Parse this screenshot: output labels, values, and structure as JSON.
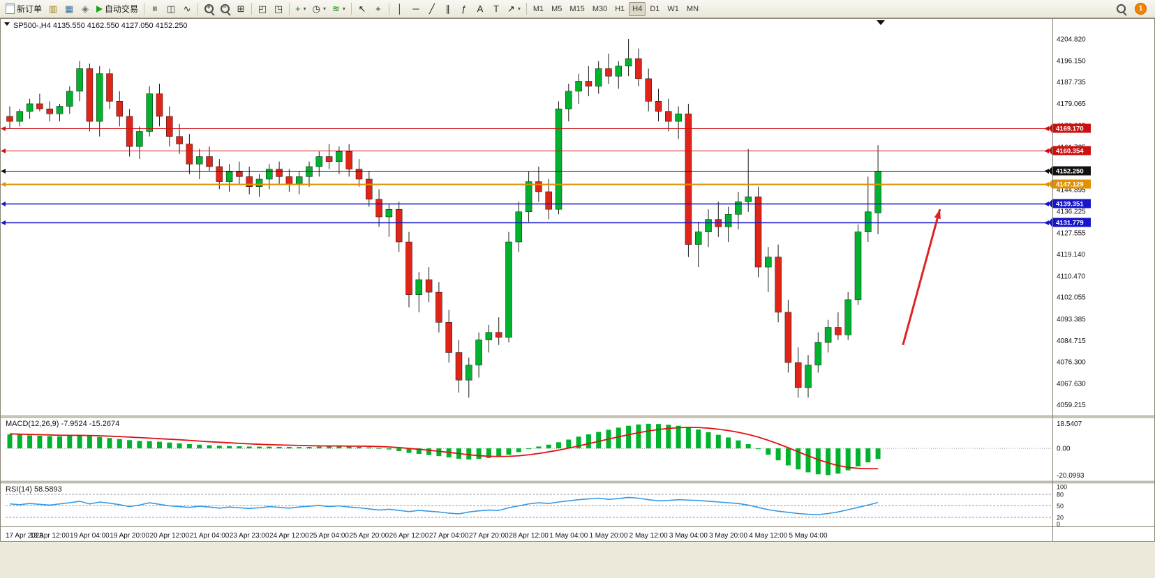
{
  "toolbar": {
    "new_order_label": "新订单",
    "auto_trading_label": "自动交易",
    "notification_count": "1",
    "timeframes": [
      "M1",
      "M5",
      "M15",
      "M30",
      "H1",
      "H4",
      "D1",
      "W1",
      "MN"
    ],
    "active_timeframe": "H4",
    "items": [
      {
        "name": "market-watch-button",
        "icon": "market-watch-icon"
      },
      {
        "name": "data-window-button",
        "icon": "data-window-icon"
      },
      {
        "name": "navigator-button",
        "icon": "navigator-icon"
      },
      {
        "name": "auto-trading-button",
        "icon": "auto-trading-icon",
        "label": "自动交易"
      },
      {
        "sep": true
      },
      {
        "name": "bars-chart-button",
        "icon": "bars-icon"
      },
      {
        "name": "candles-chart-button",
        "icon": "candles-icon"
      },
      {
        "name": "line-chart-button",
        "icon": "line-chart-icon"
      },
      {
        "sep": true
      },
      {
        "name": "zoom-in-button",
        "icon": "zoom-in-icon"
      },
      {
        "name": "zoom-out-button",
        "icon": "zoom-out-icon"
      },
      {
        "name": "grid-button",
        "icon": "grid-icon"
      },
      {
        "sep": true
      },
      {
        "name": "tile-windows-button",
        "icon": "tile-h-icon"
      },
      {
        "name": "cascade-windows-button",
        "icon": "tile-v-icon"
      },
      {
        "sep": true
      },
      {
        "name": "new-chart-button",
        "icon": "new-chart-icon",
        "caret": true
      },
      {
        "name": "refresh-button",
        "icon": "clock-icon",
        "caret": true
      },
      {
        "name": "indicators-button",
        "icon": "indicators-icon",
        "caret": true
      },
      {
        "sep": true
      },
      {
        "name": "cursor-button",
        "icon": "cursor-icon"
      },
      {
        "name": "crosshair-button",
        "icon": "crosshair-icon"
      },
      {
        "sep": true
      },
      {
        "name": "vertical-line-button",
        "icon": "vline-icon"
      },
      {
        "name": "horizontal-line-button",
        "icon": "hline-icon"
      },
      {
        "name": "trendline-button",
        "icon": "trendline-icon"
      },
      {
        "name": "channel-button",
        "icon": "channel-icon"
      },
      {
        "name": "fibonacci-button",
        "icon": "fibonacci-icon"
      },
      {
        "name": "text-button",
        "icon": "text-icon"
      },
      {
        "name": "label-button",
        "icon": "label-icon"
      },
      {
        "name": "shapes-button",
        "icon": "shapes-icon",
        "caret": true
      }
    ]
  },
  "chart_data": [
    {
      "type": "candlestick",
      "symbol": "SP500-",
      "timeframe": "H4",
      "title_text": "SP500-,H4 4135.550 4162.550 4127.050 4152.250",
      "last_ohlc": {
        "open": 4135.55,
        "high": 4162.55,
        "low": 4127.05,
        "close": 4152.25
      },
      "ylim": [
        4056,
        4212
      ],
      "colors": {
        "up": "#00b22d",
        "down": "#e02518",
        "wick": "#1a1a1a"
      },
      "y_axis_labels": [
        "4204.820",
        "4196.150",
        "4187.735",
        "4179.065",
        "4170.395",
        "4161.725",
        "4153.055",
        "4144.895",
        "4136.225",
        "4127.555",
        "4119.140",
        "4110.470",
        "4102.055",
        "4093.385",
        "4084.715",
        "4076.300",
        "4067.630",
        "4059.215"
      ],
      "x_axis_labels": [
        "17 Apr 2023",
        "18 Apr 12:00",
        "19 Apr 04:00",
        "19 Apr 20:00",
        "20 Apr 12:00",
        "21 Apr 04:00",
        "23 Apr 23:00",
        "24 Apr 12:00",
        "25 Apr 04:00",
        "25 Apr 20:00",
        "26 Apr 12:00",
        "27 Apr 04:00",
        "27 Apr 20:00",
        "28 Apr 12:00",
        "1 May 04:00",
        "1 May 20:00",
        "2 May 12:00",
        "3 May 04:00",
        "3 May 20:00",
        "4 May 12:00",
        "5 May 04:00"
      ],
      "hlines": [
        {
          "price": 4169.17,
          "label": "4169.170",
          "color": "#cc1111",
          "width": 1
        },
        {
          "price": 4160.354,
          "label": "4160.354",
          "color": "#cc1111",
          "width": 1
        },
        {
          "price": 4152.25,
          "label": "4152.250",
          "color": "#111111",
          "width": 1
        },
        {
          "price": 4147.129,
          "label": "4147.129",
          "color": "#e09000",
          "width": 2
        },
        {
          "price": 4139.351,
          "label": "4139.351",
          "color": "#1515cc",
          "width": 1.5
        },
        {
          "price": 4131.779,
          "label": "4131.779",
          "color": "#1515cc",
          "width": 1.5
        }
      ],
      "arrow": {
        "x1_index": 89.5,
        "price1": 4083,
        "x2_index": 93.2,
        "price2": 4137,
        "color": "#dd2222"
      },
      "candles": [
        [
          4174,
          4178,
          4169,
          4172
        ],
        [
          4172,
          4177,
          4170,
          4176
        ],
        [
          4176,
          4181,
          4173,
          4179
        ],
        [
          4179,
          4183,
          4176,
          4177
        ],
        [
          4177,
          4180,
          4172,
          4175
        ],
        [
          4175,
          4179,
          4172,
          4178
        ],
        [
          4178,
          4186,
          4175,
          4184
        ],
        [
          4184,
          4196,
          4180,
          4193
        ],
        [
          4193,
          4195,
          4168,
          4172
        ],
        [
          4172,
          4194,
          4166,
          4191
        ],
        [
          4191,
          4193,
          4177,
          4180
        ],
        [
          4180,
          4184,
          4170,
          4174
        ],
        [
          4174,
          4177,
          4158,
          4162
        ],
        [
          4162,
          4170,
          4157,
          4168
        ],
        [
          4168,
          4186,
          4166,
          4183
        ],
        [
          4183,
          4187,
          4170,
          4174
        ],
        [
          4174,
          4178,
          4162,
          4166
        ],
        [
          4166,
          4171,
          4159,
          4163
        ],
        [
          4163,
          4167,
          4151,
          4155
        ],
        [
          4155,
          4161,
          4149,
          4158
        ],
        [
          4158,
          4162,
          4152,
          4154
        ],
        [
          4154,
          4157,
          4145,
          4148
        ],
        [
          4148,
          4155,
          4144,
          4152
        ],
        [
          4152,
          4156,
          4147,
          4150
        ],
        [
          4150,
          4154,
          4143,
          4146
        ],
        [
          4146,
          4151,
          4142,
          4149
        ],
        [
          4149,
          4155,
          4145,
          4153
        ],
        [
          4153,
          4156,
          4147,
          4150
        ],
        [
          4150,
          4153,
          4144,
          4147
        ],
        [
          4147,
          4152,
          4143,
          4150
        ],
        [
          4150,
          4156,
          4146,
          4154
        ],
        [
          4154,
          4160,
          4150,
          4158
        ],
        [
          4158,
          4163,
          4153,
          4156
        ],
        [
          4156,
          4162,
          4151,
          4160
        ],
        [
          4160,
          4163,
          4150,
          4153
        ],
        [
          4153,
          4157,
          4146,
          4149
        ],
        [
          4149,
          4152,
          4138,
          4141
        ],
        [
          4141,
          4145,
          4130,
          4134
        ],
        [
          4134,
          4139,
          4126,
          4137
        ],
        [
          4137,
          4140,
          4120,
          4124
        ],
        [
          4124,
          4128,
          4098,
          4103
        ],
        [
          4103,
          4112,
          4096,
          4109
        ],
        [
          4109,
          4114,
          4100,
          4104
        ],
        [
          4104,
          4108,
          4088,
          4092
        ],
        [
          4092,
          4097,
          4076,
          4080
        ],
        [
          4080,
          4085,
          4064,
          4069
        ],
        [
          4069,
          4078,
          4062,
          4075
        ],
        [
          4075,
          4088,
          4070,
          4085
        ],
        [
          4085,
          4091,
          4080,
          4088
        ],
        [
          4088,
          4094,
          4083,
          4086
        ],
        [
          4086,
          4128,
          4084,
          4124
        ],
        [
          4124,
          4140,
          4120,
          4136
        ],
        [
          4136,
          4152,
          4132,
          4148
        ],
        [
          4148,
          4154,
          4140,
          4144
        ],
        [
          4144,
          4149,
          4133,
          4137
        ],
        [
          4137,
          4180,
          4135,
          4177
        ],
        [
          4177,
          4187,
          4172,
          4184
        ],
        [
          4184,
          4191,
          4179,
          4188
        ],
        [
          4188,
          4194,
          4182,
          4186
        ],
        [
          4186,
          4196,
          4183,
          4193
        ],
        [
          4193,
          4199,
          4187,
          4190
        ],
        [
          4190,
          4196,
          4185,
          4194
        ],
        [
          4194,
          4204.8,
          4190,
          4197
        ],
        [
          4197,
          4201,
          4186,
          4189
        ],
        [
          4189,
          4193,
          4176,
          4180
        ],
        [
          4180,
          4185,
          4172,
          4176
        ],
        [
          4176,
          4181,
          4168,
          4172
        ],
        [
          4172,
          4178,
          4165,
          4175
        ],
        [
          4175,
          4179,
          4118,
          4123
        ],
        [
          4123,
          4132,
          4114,
          4128
        ],
        [
          4128,
          4137,
          4122,
          4133
        ],
        [
          4133,
          4140,
          4126,
          4130
        ],
        [
          4130,
          4138,
          4124,
          4135
        ],
        [
          4135,
          4144,
          4129,
          4140
        ],
        [
          4140,
          4161,
          4136,
          4142
        ],
        [
          4142,
          4146,
          4110,
          4114
        ],
        [
          4114,
          4122,
          4104,
          4118
        ],
        [
          4118,
          4123,
          4092,
          4096
        ],
        [
          4096,
          4101,
          4072,
          4076
        ],
        [
          4076,
          4082,
          4062,
          4066
        ],
        [
          4066,
          4079,
          4062,
          4075
        ],
        [
          4075,
          4088,
          4072,
          4084
        ],
        [
          4084,
          4093,
          4080,
          4090
        ],
        [
          4090,
          4096,
          4085,
          4087
        ],
        [
          4087,
          4104,
          4085,
          4101
        ],
        [
          4101,
          4131,
          4099,
          4128
        ],
        [
          4128,
          4150,
          4124,
          4136
        ],
        [
          4135.55,
          4162.55,
          4127.05,
          4152.25
        ]
      ]
    },
    {
      "type": "macd",
      "label": "MACD(12,26,9) -7.9524 -15.2674",
      "ylim": [
        -22.5,
        20.5
      ],
      "axis": [
        {
          "label": "18.5407",
          "value": 18.5407
        },
        {
          "label": "0.00",
          "value": 0
        },
        {
          "label": "-20.0993",
          "value": -20.0993
        }
      ],
      "colors": {
        "bar": "#00b22d",
        "signal": "#e01010"
      },
      "histogram": [
        10.5,
        10.2,
        9.8,
        9.5,
        9.2,
        9.0,
        9.4,
        9.8,
        9.2,
        8.6,
        7.8,
        7.0,
        6.2,
        5.6,
        5.4,
        5.0,
        4.4,
        3.8,
        3.2,
        2.8,
        2.4,
        2.0,
        1.8,
        1.6,
        1.4,
        1.3,
        1.3,
        1.2,
        1.1,
        1.0,
        1.1,
        1.3,
        1.4,
        1.5,
        1.4,
        1.2,
        0.8,
        0.2,
        -0.8,
        -2.0,
        -3.4,
        -4.2,
        -5.0,
        -5.8,
        -6.8,
        -7.8,
        -8.4,
        -7.9,
        -7.2,
        -6.4,
        -4.8,
        -2.8,
        -0.6,
        1.4,
        2.8,
        4.6,
        6.6,
        8.8,
        10.6,
        12.4,
        14.0,
        15.6,
        17.0,
        18.0,
        18.5,
        18.3,
        17.8,
        17.0,
        15.8,
        14.2,
        12.2,
        10.2,
        8.2,
        6.0,
        3.2,
        -0.6,
        -4.8,
        -9.0,
        -12.8,
        -15.8,
        -18.0,
        -19.5,
        -20.1,
        -19.0,
        -16.5,
        -13.5,
        -10.5,
        -7.95
      ],
      "signal": [
        10.9,
        10.7,
        10.5,
        10.3,
        10.1,
        9.9,
        9.8,
        9.8,
        9.7,
        9.5,
        9.2,
        8.9,
        8.5,
        8.1,
        7.7,
        7.3,
        6.9,
        6.5,
        6.0,
        5.5,
        5.0,
        4.6,
        4.2,
        3.8,
        3.4,
        3.1,
        2.8,
        2.6,
        2.4,
        2.2,
        2.0,
        1.9,
        1.8,
        1.8,
        1.7,
        1.7,
        1.6,
        1.4,
        1.1,
        0.6,
        0.0,
        -0.7,
        -1.4,
        -2.2,
        -3.0,
        -3.9,
        -4.8,
        -5.5,
        -5.9,
        -6.1,
        -6.0,
        -5.6,
        -4.8,
        -3.8,
        -2.6,
        -1.3,
        0.2,
        1.8,
        3.5,
        5.3,
        7.0,
        8.7,
        10.3,
        11.8,
        13.1,
        14.2,
        15.0,
        15.6,
        15.8,
        15.7,
        15.2,
        14.4,
        13.4,
        12.1,
        10.5,
        8.5,
        6.1,
        3.4,
        0.5,
        -2.6,
        -5.6,
        -8.4,
        -10.9,
        -12.9,
        -14.3,
        -15.0,
        -15.3,
        -15.27
      ]
    },
    {
      "type": "rsi",
      "label": "RSI(14) 58.5893",
      "ylim": [
        0,
        100
      ],
      "levels": [
        80,
        50,
        20
      ],
      "axis_labels": [
        "100",
        "80",
        "50",
        "20",
        "0"
      ],
      "axis_values": [
        100,
        80,
        50,
        20,
        0
      ],
      "color": "#3399e6",
      "values": [
        55,
        53,
        56,
        54,
        52,
        55,
        58,
        62,
        55,
        60,
        57,
        53,
        48,
        52,
        58,
        54,
        50,
        48,
        46,
        49,
        47,
        44,
        47,
        45,
        43,
        45,
        48,
        46,
        44,
        47,
        49,
        51,
        48,
        50,
        47,
        45,
        42,
        39,
        41,
        38,
        35,
        38,
        36,
        34,
        31,
        29,
        34,
        37,
        39,
        38,
        45,
        50,
        55,
        58,
        56,
        60,
        63,
        66,
        68,
        70,
        67,
        69,
        72,
        70,
        66,
        63,
        64,
        66,
        65,
        64,
        62,
        60,
        58,
        56,
        52,
        46,
        40,
        36,
        33,
        30,
        28,
        27,
        30,
        34,
        40,
        46,
        52,
        58.59
      ]
    }
  ]
}
